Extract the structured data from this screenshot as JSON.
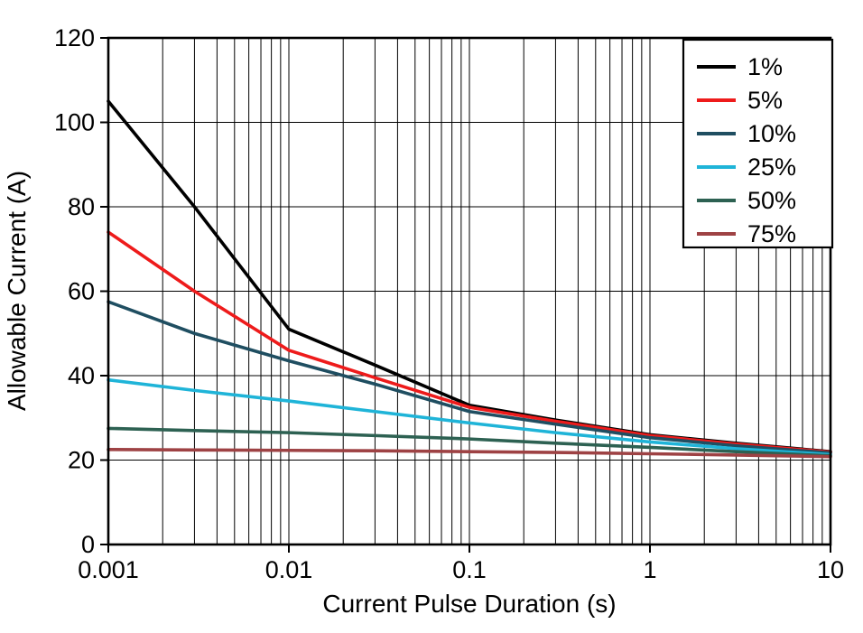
{
  "chart_data": {
    "type": "line",
    "title": "",
    "xlabel": "Current Pulse Duration (s)",
    "ylabel": "Allowable Current (A)",
    "x_scale": "log",
    "xlim": [
      0.001,
      10
    ],
    "ylim": [
      0,
      120
    ],
    "x_tick_values": [
      0.001,
      0.01,
      0.1,
      1,
      10
    ],
    "x_tick_labels": [
      "0.001",
      "0.01",
      "0.1",
      "1",
      "10"
    ],
    "y_ticks": [
      0,
      20,
      40,
      60,
      80,
      100,
      120
    ],
    "grid": {
      "horizontal": "major every 20 A",
      "vertical": "log decades with minor lines 2-9 per decade",
      "color": "#000000"
    },
    "legend": {
      "position": "top-right",
      "border": true,
      "entries": [
        "1%",
        "5%",
        "10%",
        "25%",
        "50%",
        "75%"
      ]
    },
    "x": [
      0.001,
      0.003,
      0.01,
      0.03,
      0.1,
      0.3,
      1,
      3,
      10
    ],
    "series": [
      {
        "name": "1%",
        "color": "#000000",
        "values": [
          105,
          80,
          51,
          42.5,
          33,
          29.5,
          26,
          24,
          22
        ]
      },
      {
        "name": "5%",
        "color": "#ee1b1b",
        "values": [
          74,
          60,
          46,
          39.5,
          32.5,
          29.2,
          25.8,
          23.8,
          21.9
        ]
      },
      {
        "name": "10%",
        "color": "#1f4e61",
        "values": [
          57.5,
          50,
          43.5,
          38,
          31.5,
          28.5,
          25.3,
          23.4,
          21.7
        ]
      },
      {
        "name": "25%",
        "color": "#1fb4d8",
        "values": [
          39,
          36.5,
          34,
          31.5,
          28.8,
          26.5,
          24.3,
          22.7,
          21.3
        ]
      },
      {
        "name": "50%",
        "color": "#2d6152",
        "values": [
          27.5,
          27,
          26.5,
          25.8,
          25,
          24,
          23,
          22,
          21
        ]
      },
      {
        "name": "75%",
        "color": "#9e4244",
        "values": [
          22.5,
          22.4,
          22.3,
          22.2,
          22,
          21.8,
          21.5,
          21.2,
          20.8
        ]
      }
    ]
  }
}
